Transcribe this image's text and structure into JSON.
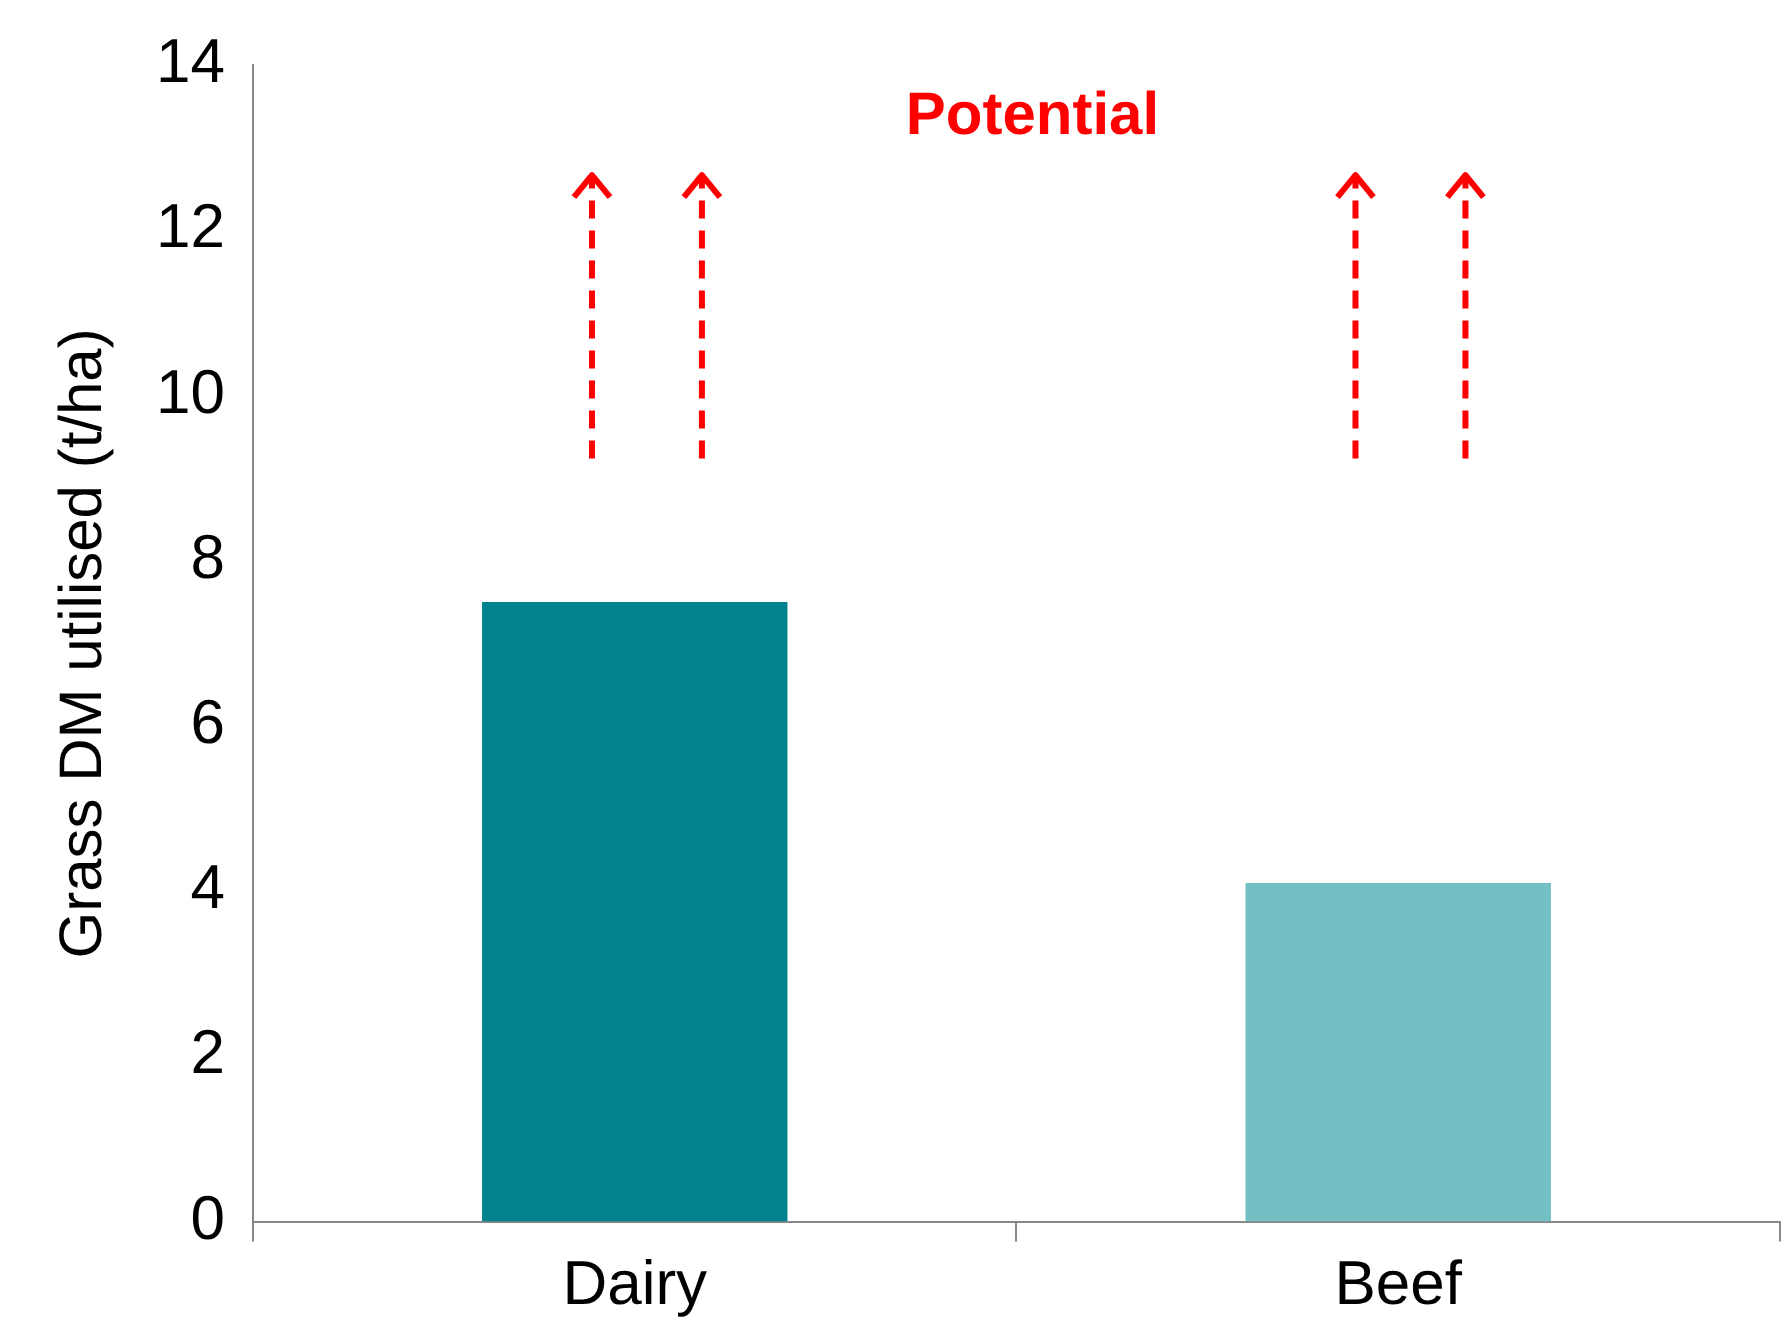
{
  "chart_data": {
    "type": "bar",
    "categories": [
      "Dairy",
      "Beef"
    ],
    "values": [
      7.5,
      4.1
    ],
    "colors": [
      "#00828f",
      "#72bfc4"
    ],
    "ylabel": "Grass DM utilised (t/ha)",
    "ylim": [
      0,
      14
    ],
    "yticks": [
      0,
      2,
      4,
      6,
      8,
      10,
      12,
      14
    ],
    "grid": false,
    "legend": false,
    "annotations": [
      "Potential"
    ]
  }
}
